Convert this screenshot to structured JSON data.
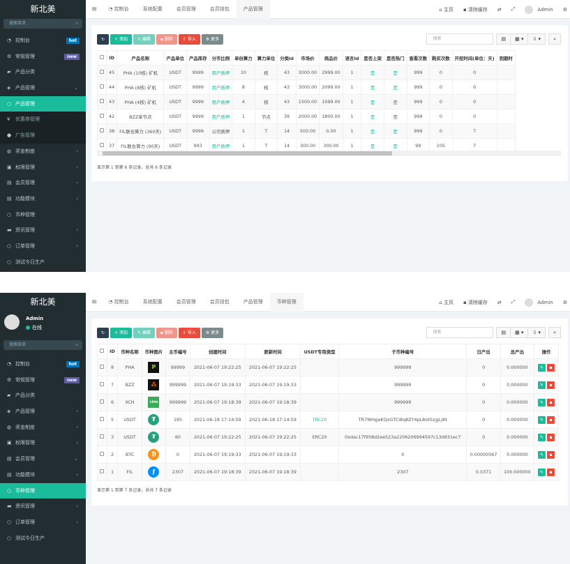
{
  "brand": "新北美",
  "colors": {
    "sidebar": "#222d32",
    "accent": "#1abc9c",
    "hot": "#0073b7",
    "new": "#605ca8",
    "danger": "#e74c3c",
    "dark": "#2c3e50",
    "gray": "#7b8a8b",
    "edit_light": "#72d1bd",
    "delete_light": "#f1948a"
  },
  "header": {
    "menu_icon": "hamburger-icon",
    "tabs_top": [
      "控制台",
      "系统配置",
      "会员管理",
      "会员钱包",
      "产品管理"
    ],
    "tabs_bottom": [
      "控制台",
      "系统配置",
      "会员管理",
      "会员钱包",
      "产品管理",
      "币种管理"
    ],
    "home": "主页",
    "clear_cache": "清除缓存",
    "user": "Admin"
  },
  "user_panel": {
    "name": "Admin",
    "status": "在线"
  },
  "sidebar_search_placeholder": "搜索菜单",
  "sidebar_top": [
    {
      "icon": "dashboard-icon",
      "glyph": "◔",
      "label": "控制台",
      "badge": "hot"
    },
    {
      "icon": "cogs-icon",
      "glyph": "⚙",
      "label": "常规管理",
      "badge": "new"
    },
    {
      "icon": "leaf-icon",
      "glyph": "▰",
      "label": "产品分类"
    },
    {
      "icon": "diamond-icon",
      "glyph": "◈",
      "label": "产品管理",
      "arrow": "⌄"
    },
    {
      "icon": "circle-icon",
      "glyph": "○",
      "label": "产品管理",
      "active": true
    },
    {
      "icon": "yen-icon",
      "glyph": "¥",
      "label": "优惠券管理",
      "sub": true
    },
    {
      "icon": "dot-icon",
      "glyph": "●",
      "label": "广告管理",
      "sub": true
    },
    {
      "icon": "gift-icon",
      "glyph": "◍",
      "label": "奖金制度",
      "arrow": "‹"
    },
    {
      "icon": "users-icon",
      "glyph": "▣",
      "label": "权限管理",
      "arrow": "‹"
    },
    {
      "icon": "list-icon",
      "glyph": "▤",
      "label": "会员管理",
      "arrow": "‹"
    },
    {
      "icon": "list-icon",
      "glyph": "▤",
      "label": "功能模块",
      "arrow": "‹"
    },
    {
      "icon": "circle-icon",
      "glyph": "○",
      "label": "币种管理"
    },
    {
      "icon": "news-icon",
      "glyph": "▬",
      "label": "资讯管理",
      "arrow": "‹"
    },
    {
      "icon": "circle-icon",
      "glyph": "○",
      "label": "订单管理",
      "arrow": "‹"
    },
    {
      "icon": "circle-icon",
      "glyph": "○",
      "label": "测试今日生产"
    }
  ],
  "sidebar_bottom": [
    {
      "icon": "dashboard-icon",
      "glyph": "◔",
      "label": "控制台",
      "badge": "hot"
    },
    {
      "icon": "cogs-icon",
      "glyph": "⚙",
      "label": "常规管理",
      "badge": "new"
    },
    {
      "icon": "leaf-icon",
      "glyph": "▰",
      "label": "产品分类"
    },
    {
      "icon": "diamond-icon",
      "glyph": "◈",
      "label": "产品管理",
      "arrow": "‹"
    },
    {
      "icon": "gift-icon",
      "glyph": "◍",
      "label": "奖金制度",
      "arrow": "‹"
    },
    {
      "icon": "users-icon",
      "glyph": "▣",
      "label": "权限管理",
      "arrow": "‹"
    },
    {
      "icon": "list-icon",
      "glyph": "▤",
      "label": "会员管理",
      "arrow": "⌄"
    },
    {
      "icon": "list-icon",
      "glyph": "▤",
      "label": "功能模块",
      "arrow": "‹"
    },
    {
      "icon": "circle-icon",
      "glyph": "○",
      "label": "币种管理",
      "active": true
    },
    {
      "icon": "news-icon",
      "glyph": "▬",
      "label": "资讯管理",
      "arrow": "‹"
    },
    {
      "icon": "circle-icon",
      "glyph": "○",
      "label": "订单管理",
      "arrow": "‹"
    },
    {
      "icon": "circle-icon",
      "glyph": "○",
      "label": "测试今日生产"
    }
  ],
  "toolbar": {
    "add": "添加",
    "edit": "编辑",
    "delete": "删除",
    "import": "导入",
    "more": "更多",
    "search_placeholder": "搜索"
  },
  "products": {
    "columns": [
      "ID",
      "产品名称",
      "产品单位",
      "产品库存",
      "分币比例",
      "单份算力",
      "算力单位",
      "分类id",
      "市场价",
      "商品价",
      "语言Id",
      "是否上架",
      "是否热门",
      "查看次数",
      "购买次数",
      "开挖时间(单位：天)",
      "到期时"
    ],
    "rows": [
      [
        "45",
        "PHA (10核) 矿机",
        "USDT",
        "9999",
        "用户质押",
        "10",
        "核",
        "43",
        "3000.00",
        "2999.00",
        "1",
        "是",
        "是",
        "999",
        "0",
        "0",
        ""
      ],
      [
        "44",
        "PHA (8核) 矿机",
        "USDT",
        "9999",
        "用户质押",
        "8",
        "核",
        "43",
        "3000.00",
        "2099.00",
        "1",
        "是",
        "是",
        "999",
        "0",
        "0",
        ""
      ],
      [
        "43",
        "PHA (4核) 矿机",
        "USDT",
        "9999",
        "用户质押",
        "4",
        "核",
        "43",
        "1500.00",
        "1099.00",
        "1",
        "是",
        "否",
        "999",
        "0",
        "0",
        ""
      ],
      [
        "42",
        "BZZ单节点",
        "USDT",
        "9999",
        "用户质押",
        "1",
        "节点",
        "39",
        "2000.00",
        "1800.00",
        "1",
        "是",
        "否",
        "999",
        "0",
        "0",
        ""
      ],
      [
        "38",
        "FIL联合算力 (360天)",
        "USDT",
        "9999",
        "公司质押",
        "1",
        "T",
        "14",
        "500.00",
        "0.00",
        "1",
        "是",
        "是",
        "999",
        "0",
        "7",
        ""
      ],
      [
        "37",
        "FIL联合算力 (90天)",
        "USDT",
        "993",
        "用户质押",
        "1",
        "T",
        "14",
        "300.00",
        "300.00",
        "1",
        "是",
        "是",
        "99",
        "105",
        "7",
        ""
      ]
    ],
    "scroll_position": 0.0,
    "footer": "显示第 1 到第 6 条记录，总共 6 条记录"
  },
  "coins": {
    "columns": [
      "ID",
      "币种名称",
      "币种图片",
      "主币编号",
      "创建时间",
      "更新时间",
      "USDT专用类型",
      "子币种编号",
      "日产出",
      "总产出",
      "操作"
    ],
    "rows": [
      {
        "id": "8",
        "name": "PHA",
        "icon": "pha-logo-icon",
        "main": "99999",
        "created": "2021-06-07 19:22:25",
        "updated": "2021-06-07 19:22:25",
        "type": "",
        "sub": "999999",
        "daily": "0",
        "total": "0.000000"
      },
      {
        "id": "7",
        "name": "BZZ",
        "icon": "bzz-logo-icon",
        "main": "999999",
        "created": "2021-06-07 19:19:33",
        "updated": "2021-06-07 19:19:33",
        "type": "",
        "sub": "999999",
        "daily": "0",
        "total": "0.000000"
      },
      {
        "id": "6",
        "name": "XCH",
        "icon": "chia-logo-icon",
        "main": "999999",
        "created": "2021-06-07 19:18:39",
        "updated": "2021-06-07 19:18:39",
        "type": "",
        "sub": "999999",
        "daily": "0",
        "total": "0.000000"
      },
      {
        "id": "5",
        "name": "USDT",
        "icon": "tether-logo-icon",
        "main": "195",
        "created": "2021-06-18 17:14:59",
        "updated": "2021-06-18 17:14:59",
        "type": "TRC20",
        "sub": "TR7NHqjeKQxGTCi8q8ZY4pL8otSzgjLj6t",
        "daily": "0",
        "total": "0.000000"
      },
      {
        "id": "3",
        "name": "USDT",
        "icon": "tether-logo-icon",
        "main": "60",
        "created": "2021-06-07 19:22:25",
        "updated": "2021-06-07 19:22:25",
        "type": "ERC20",
        "sub": "0xdac17f958d2ee523a2206206994597c13d831ec7",
        "daily": "0",
        "total": "0.000000"
      },
      {
        "id": "2",
        "name": "BTC",
        "icon": "bitcoin-logo-icon",
        "main": "0",
        "created": "2021-06-07 19:19:33",
        "updated": "2021-06-07 19:19:33",
        "type": "",
        "sub": "0",
        "daily": "0.00000567",
        "total": "0.000000"
      },
      {
        "id": "1",
        "name": "FIL",
        "icon": "filecoin-logo-icon",
        "main": "2307",
        "created": "2021-06-07 19:18:39",
        "updated": "2021-06-07 19:18:39",
        "type": "",
        "sub": "2307",
        "daily": "0.0371",
        "total": "100.000000"
      }
    ],
    "footer": "显示第 1 到第 7 条记录，总共 7 条记录"
  }
}
